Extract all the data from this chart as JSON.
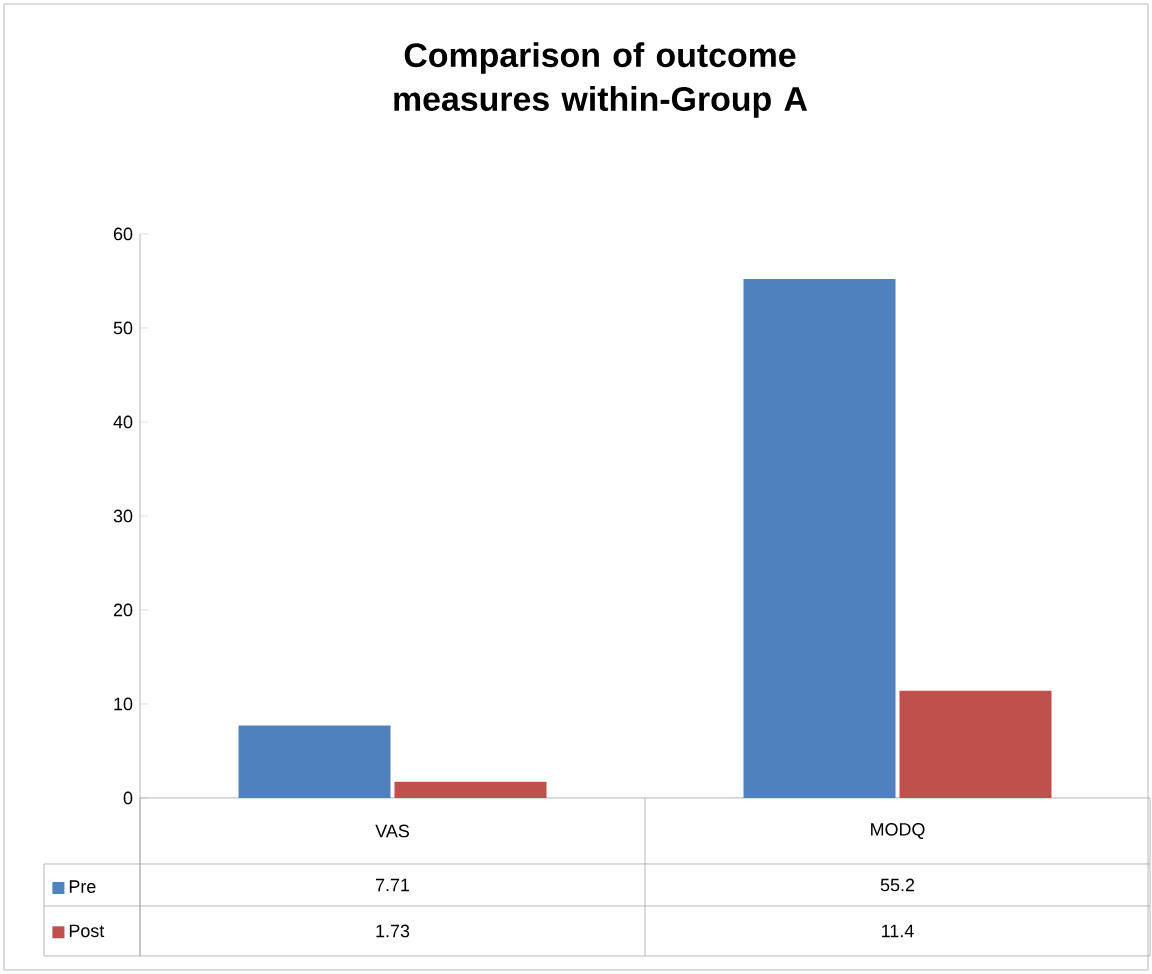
{
  "chart_data": {
    "type": "bar",
    "title": "Comparison of outcome measures within-Group A",
    "categories": [
      "VAS",
      "MODQ"
    ],
    "series": [
      {
        "name": "Pre",
        "color": "#4f81bd",
        "values": [
          7.71,
          55.2
        ]
      },
      {
        "name": "Post",
        "color": "#c0504d",
        "values": [
          1.73,
          11.4
        ]
      }
    ],
    "ylim": [
      0,
      60
    ],
    "yticks": [
      0,
      10,
      20,
      30,
      40,
      50,
      60
    ],
    "data_labels": true,
    "legend": "bottom"
  }
}
